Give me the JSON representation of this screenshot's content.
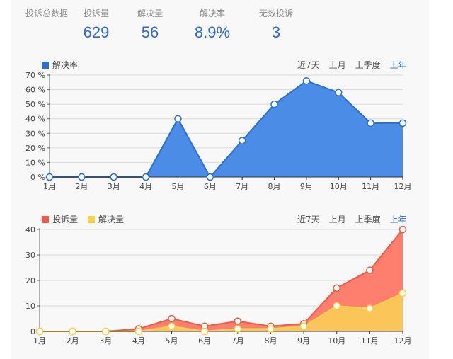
{
  "summary": {
    "title": "投诉总数据",
    "stats": [
      {
        "label": "投诉量",
        "value": "629"
      },
      {
        "label": "解决量",
        "value": "56"
      },
      {
        "label": "解决率",
        "value": "8.9%"
      },
      {
        "label": "无效投诉",
        "value": "3"
      }
    ]
  },
  "range_options": [
    "近7天",
    "上月",
    "上季度",
    "上年"
  ],
  "range_active": "上年",
  "colors": {
    "accent": "#2e6bd1",
    "rate_line": "#2a6fd6",
    "rate_fill": "#4a8ce6",
    "complaints": "#f05a46",
    "complaints_fill": "#ff7f6e",
    "resolved": "#f7d24a",
    "resolved_fill": "#fcc55a"
  },
  "chart_data": [
    {
      "type": "area",
      "title": "",
      "legend": [
        "解决率"
      ],
      "legend_position": "top-left",
      "categories": [
        "1月",
        "2月",
        "3月",
        "4月",
        "5月",
        "6月",
        "7月",
        "8月",
        "9月",
        "10月",
        "11月",
        "12月"
      ],
      "series": [
        {
          "name": "解决率",
          "values": [
            0,
            0,
            0,
            0,
            40,
            0,
            25,
            50,
            66,
            58,
            37,
            37
          ]
        }
      ],
      "xlabel": "",
      "ylabel": "",
      "ylim": [
        0,
        70
      ],
      "yticks": [
        "0 %",
        "10 %",
        "20 %",
        "30 %",
        "40 %",
        "50 %",
        "60 %",
        "70 %"
      ],
      "grid": true
    },
    {
      "type": "area",
      "title": "",
      "legend": [
        "投诉量",
        "解决量"
      ],
      "legend_position": "top-left",
      "categories": [
        "1月",
        "2月",
        "3月",
        "4月",
        "5月",
        "6月",
        "7月",
        "8月",
        "9月",
        "10月",
        "11月",
        "12月"
      ],
      "series": [
        {
          "name": "投诉量",
          "values": [
            0,
            0,
            0,
            1,
            5,
            2,
            4,
            2,
            3,
            17,
            24,
            40
          ]
        },
        {
          "name": "解决量",
          "values": [
            0,
            0,
            0,
            0,
            2,
            0,
            1,
            1,
            2,
            10,
            9,
            15
          ]
        }
      ],
      "xlabel": "",
      "ylabel": "",
      "ylim": [
        0,
        40
      ],
      "yticks": [
        "0",
        "10",
        "20",
        "30",
        "40"
      ],
      "grid": true
    }
  ]
}
